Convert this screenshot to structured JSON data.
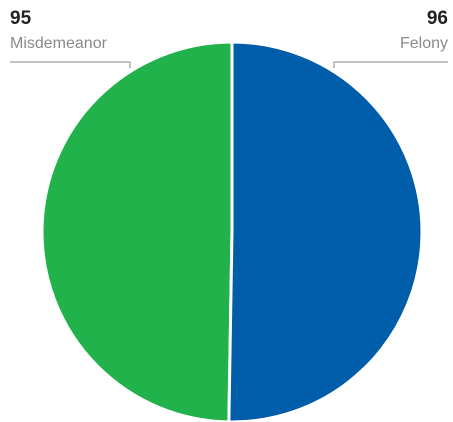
{
  "chart_data": {
    "type": "pie",
    "slices": [
      {
        "label": "Misdemeanor",
        "value": 95,
        "value_label": "95",
        "color": "#22b24c"
      },
      {
        "label": "Felony",
        "value": 96,
        "value_label": "96",
        "color": "#005daa"
      }
    ],
    "title": "",
    "legend": "none",
    "data_labels": "outside-top-corners",
    "separator_color": "#ffffff",
    "leader_line_color": "#b0b0b0"
  }
}
